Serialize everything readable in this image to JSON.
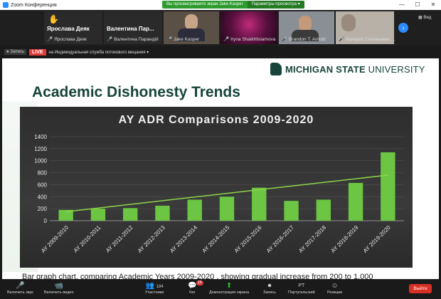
{
  "window": {
    "title": "Zoom Конференция",
    "share_notice": "Вы просматриваете экран Jake Kasper",
    "view_options": "Параметры просмотра",
    "controls": [
      "—",
      "☐",
      "✕"
    ]
  },
  "participants": [
    {
      "display": "Ярослава Деяк",
      "label": "Ярослава Деяк",
      "muted": true,
      "hand_raised": true
    },
    {
      "display": "Валентина Пар...",
      "label": "Валентина Парандій",
      "muted": true
    },
    {
      "label": "Jake Kasper",
      "muted": true
    },
    {
      "label": "Iryna Shaikhlislamova",
      "muted": true
    },
    {
      "label": "Brandon T. Arnold",
      "muted": true
    },
    {
      "label": "Валерій Степанович ...",
      "muted": true
    }
  ],
  "view_button": "Вид",
  "recording": {
    "rec_label": "Запись",
    "live_label": "LIVE",
    "stream_text": "на Индивидуальная служба потокового вещания"
  },
  "slide": {
    "logo_bold": "MICHIGAN STATE",
    "logo_light": " UNIVERSITY",
    "title": "Academic Dishonesty Trends",
    "caption": "Bar graph chart, comparing Academic Years 2009-2020 , showing gradual increase from 200 to 1,000"
  },
  "chart_data": {
    "type": "bar",
    "title": "AY ADR Comparisons  2009-2020",
    "categories": [
      "AY 2009-2010",
      "AY 2010-2011",
      "AY 2011-2012",
      "AY 2012-2013",
      "AY 2013-2014",
      "AY 2014-2015",
      "AY 2015-2016",
      "AY 2016-2017",
      "AY 2017-2018",
      "AY 2018-2019",
      "AY 2019-2020"
    ],
    "values": [
      180,
      200,
      210,
      250,
      350,
      400,
      550,
      330,
      350,
      630,
      1140
    ],
    "trendline": {
      "start": 150,
      "end": 760
    },
    "yticks": [
      0,
      200,
      400,
      600,
      800,
      1000,
      1200,
      1400
    ],
    "ylim": [
      0,
      1400
    ],
    "bar_color": "#6cc644",
    "trend_color": "#8fd44a"
  },
  "toolbar": {
    "items": [
      {
        "name": "unmute-button",
        "icon": "🎤",
        "label": "Включить звук"
      },
      {
        "name": "start-video-button",
        "icon": "📹",
        "label": "Включить видео"
      },
      {
        "name": "participants-button",
        "icon": "👥",
        "label": "Участники",
        "count": "184"
      },
      {
        "name": "chat-button",
        "icon": "💬",
        "label": "Чат",
        "badge": "16"
      },
      {
        "name": "share-screen-button",
        "icon": "⬆",
        "label": "Демонстрация экрана",
        "green": true
      },
      {
        "name": "record-button",
        "icon": "⏺",
        "label": "Запись"
      },
      {
        "name": "portal-button",
        "icon": "PT",
        "label": "Португальский"
      },
      {
        "name": "reactions-button",
        "icon": "☺",
        "label": "Реакции"
      }
    ],
    "exit_label": "Выйти"
  }
}
